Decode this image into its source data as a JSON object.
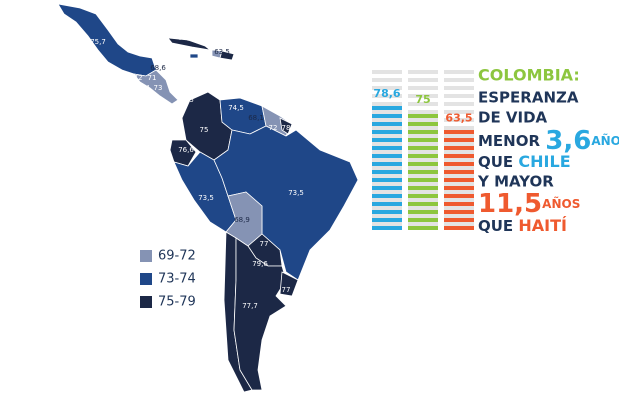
{
  "map": {
    "labels": [
      "75,7",
      "78,4",
      "73,6",
      "63,5",
      "78",
      "68,6",
      "72",
      "71",
      "74,4",
      "73",
      "78,4",
      "78,5",
      "74,5",
      "68,1",
      "72",
      "78",
      "75",
      "76,6",
      "73,5",
      "73,5",
      "68,9",
      "77",
      "79,6",
      "77,7",
      "77"
    ],
    "label_classes": [
      1,
      2,
      2,
      0,
      2,
      0,
      1,
      1,
      1,
      1,
      2,
      2,
      1,
      0,
      1,
      2,
      2,
      2,
      1,
      1,
      0,
      2,
      2,
      2,
      2
    ],
    "legend": [
      {
        "label": "69-72",
        "color": "#8593b4"
      },
      {
        "label": "73-74",
        "color": "#1f4788"
      },
      {
        "label": "75-79",
        "color": "#1c2846"
      }
    ]
  },
  "infographic": {
    "bars": [
      {
        "label": "78,6",
        "value": 78.6,
        "color": "#29a8e0"
      },
      {
        "label": "75",
        "value": 75,
        "color": "#8dc63f"
      },
      {
        "label": "63,5",
        "value": 63.5,
        "color": "#ef5a2f"
      }
    ],
    "lines": [
      {
        "text": "COLOMBIA:",
        "color": "#8dc63f",
        "size": 16
      },
      {
        "text": "ESPERANZA",
        "color": "#1f3558",
        "size": 15
      },
      {
        "text": "DE VIDA",
        "color": "#1f3558",
        "size": 15
      },
      {
        "parts": [
          {
            "text": "MENOR ",
            "color": "#1f3558",
            "size": 15
          },
          {
            "text": "3,6",
            "color": "#29a8e0",
            "size": 26
          },
          {
            "text": "AÑOS",
            "color": "#29a8e0",
            "size": 12
          }
        ]
      },
      {
        "parts": [
          {
            "text": "QUE ",
            "color": "#1f3558",
            "size": 15
          },
          {
            "text": "CHILE",
            "color": "#29a8e0",
            "size": 16
          }
        ]
      },
      {
        "text": "Y MAYOR",
        "color": "#1f3558",
        "size": 15
      },
      {
        "parts": [
          {
            "text": "11,5",
            "color": "#ef5a2f",
            "size": 26
          },
          {
            "text": "AÑOS",
            "color": "#ef5a2f",
            "size": 12
          }
        ]
      },
      {
        "parts": [
          {
            "text": "QUE ",
            "color": "#1f3558",
            "size": 15
          },
          {
            "text": "HAITÍ",
            "color": "#ef5a2f",
            "size": 16
          }
        ]
      }
    ]
  }
}
